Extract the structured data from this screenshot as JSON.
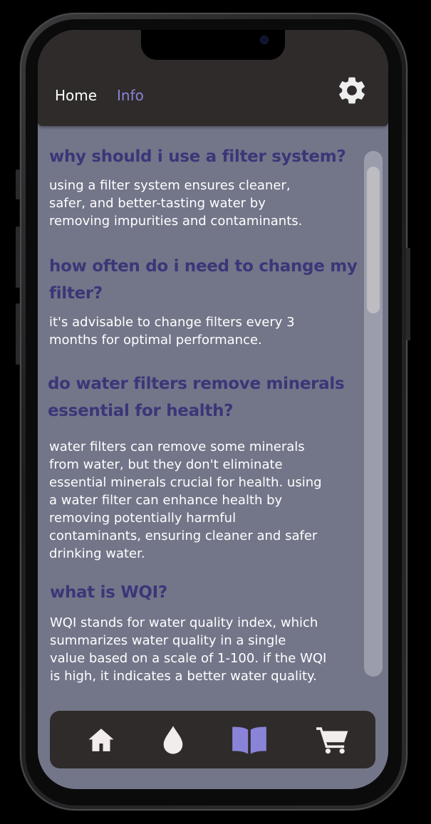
{
  "header": {
    "nav": [
      {
        "label": "Home",
        "active": false
      },
      {
        "label": "Info",
        "active": true
      }
    ],
    "settings_icon": "gear-icon"
  },
  "faq": [
    {
      "question_lines": [
        "why should i use a filter system?"
      ],
      "answer_lines": [
        "using a filter system ensures cleaner,",
        "safer, and better-tasting water by",
        "removing impurities and contaminants."
      ]
    },
    {
      "question_lines": [
        "how often do i need to change my",
        "filter?"
      ],
      "answer_lines": [
        "it's advisable to change filters every 3",
        "months for optimal performance."
      ]
    },
    {
      "question_lines": [
        "do water filters remove minerals",
        "essential for health?"
      ],
      "answer_lines": [
        "water filters can remove some minerals",
        "from water, but they don't eliminate",
        "essential minerals crucial for health. using",
        "a water filter can enhance health by",
        "removing potentially harmful",
        "contaminants, ensuring cleaner and safer",
        "drinking water."
      ]
    },
    {
      "question_lines": [
        "what is WQI?"
      ],
      "answer_lines": [
        "WQI stands for water quality index, which",
        "summarizes water quality in a single",
        "value based on a scale of 1-100. if the WQI",
        "is high, it indicates a better water quality."
      ]
    }
  ],
  "bottom_nav": [
    {
      "icon": "home-icon",
      "active": false
    },
    {
      "icon": "water-drop-icon",
      "active": false
    },
    {
      "icon": "book-icon",
      "active": true
    },
    {
      "icon": "shopping-cart-icon",
      "active": false
    }
  ],
  "colors": {
    "bar": "#2f2b2b",
    "screen_bg": "#737689",
    "question": "#3b3678",
    "accent": "#8a84d8",
    "icon_default": "#f2ecec"
  }
}
